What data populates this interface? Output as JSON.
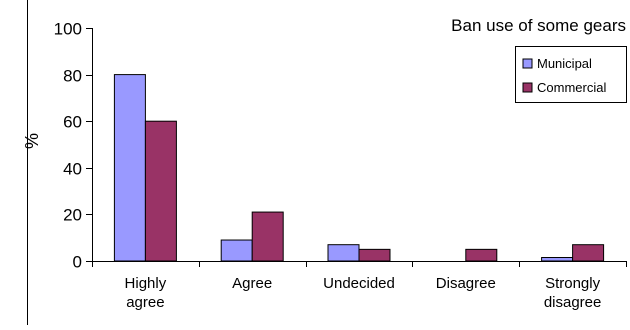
{
  "chart_data": {
    "type": "bar",
    "title": "Ban use of some gears",
    "xlabel": "",
    "ylabel": "%",
    "ylim": [
      0,
      100
    ],
    "yticks": [
      0,
      20,
      40,
      60,
      80,
      100
    ],
    "grid": false,
    "legend_position": "top-right",
    "categories": [
      [
        "Highly",
        "agree"
      ],
      [
        "Agree"
      ],
      [
        "Undecided"
      ],
      [
        "Disagree"
      ],
      [
        "Strongly",
        "disagree"
      ]
    ],
    "series": [
      {
        "name": "Municipal",
        "color": "#9999ff",
        "values": [
          80,
          9,
          7,
          0,
          1.5
        ]
      },
      {
        "name": "Commercial",
        "color": "#993366",
        "values": [
          60,
          21,
          5,
          5,
          7
        ]
      }
    ]
  }
}
